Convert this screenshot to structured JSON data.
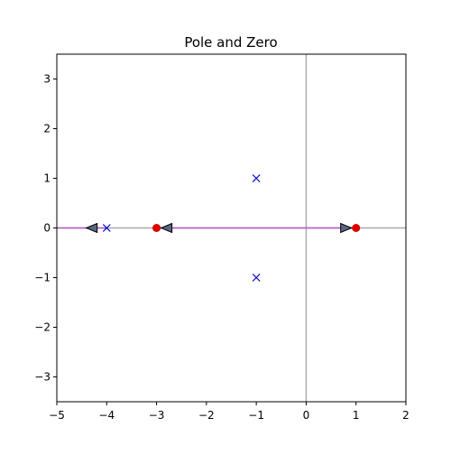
{
  "chart_data": {
    "type": "scatter",
    "title": "Pole and Zero",
    "xlabel": "",
    "ylabel": "",
    "xlim": [
      -5,
      2
    ],
    "ylim": [
      -3.5,
      3.5
    ],
    "x_ticks": [
      -5,
      -4,
      -3,
      -2,
      -1,
      0,
      1,
      2
    ],
    "x_tick_labels": [
      "−5",
      "−4",
      "−3",
      "−2",
      "−1",
      "0",
      "1",
      "2"
    ],
    "y_ticks": [
      -3,
      -2,
      -1,
      0,
      1,
      2,
      3
    ],
    "y_tick_labels": [
      "−3",
      "−2",
      "−1",
      "0",
      "1",
      "2",
      "3"
    ],
    "grid": false,
    "reference_lines": {
      "horizontal_at": 0,
      "vertical_at": 0,
      "color": "#aaaaaa"
    },
    "series": [
      {
        "marker": "x",
        "color": "#0000cc",
        "points": [
          [
            -1,
            1
          ],
          [
            -1,
            -1
          ],
          [
            -4,
            0
          ]
        ]
      },
      {
        "marker": "circle",
        "color": "#dd0000",
        "points": [
          [
            -3,
            0
          ],
          [
            1,
            0
          ]
        ]
      }
    ],
    "branches": {
      "color": "#bb55cc",
      "segments": [
        [
          [
            -5,
            0
          ],
          [
            -4,
            0
          ]
        ],
        [
          [
            -3,
            0
          ],
          [
            1,
            0
          ]
        ]
      ]
    },
    "arrows": {
      "fill": "#5a6680",
      "items": [
        {
          "x": -4.3,
          "y": 0,
          "direction": "left"
        },
        {
          "x": -2.8,
          "y": 0,
          "direction": "left"
        },
        {
          "x": 0.8,
          "y": 0,
          "direction": "right"
        }
      ]
    }
  }
}
